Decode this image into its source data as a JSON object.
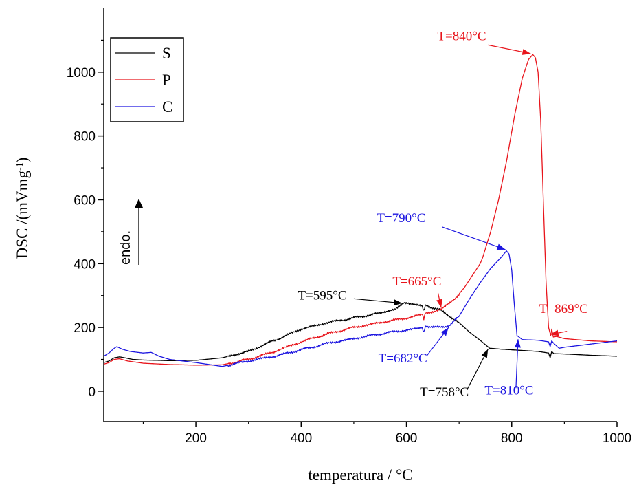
{
  "chart_data": {
    "type": "line",
    "xlabel": "temperatura / °C",
    "ylabel": "DSC /(mVmg",
    "ylabel_sup": "-1",
    "ylabel_end": ")",
    "xlim": [
      25,
      1000
    ],
    "ylim": [
      -95,
      1200
    ],
    "xticks": [
      200,
      400,
      600,
      800,
      1000
    ],
    "yticks": [
      0,
      200,
      400,
      600,
      800,
      1000
    ],
    "grid": false,
    "legend_position": "top-left",
    "endo_label": "endo.",
    "series": [
      {
        "name": "S",
        "color": "#000000",
        "points": [
          [
            25,
            90
          ],
          [
            35,
            95
          ],
          [
            45,
            105
          ],
          [
            55,
            108
          ],
          [
            65,
            105
          ],
          [
            80,
            100
          ],
          [
            100,
            98
          ],
          [
            150,
            96
          ],
          [
            200,
            97
          ],
          [
            250,
            105
          ],
          [
            300,
            125
          ],
          [
            350,
            160
          ],
          [
            400,
            195
          ],
          [
            450,
            215
          ],
          [
            500,
            230
          ],
          [
            550,
            245
          ],
          [
            580,
            260
          ],
          [
            595,
            275
          ],
          [
            620,
            270
          ],
          [
            630,
            265
          ],
          [
            633,
            250
          ],
          [
            636,
            268
          ],
          [
            650,
            262
          ],
          [
            670,
            250
          ],
          [
            700,
            215
          ],
          [
            720,
            185
          ],
          [
            740,
            160
          ],
          [
            758,
            135
          ],
          [
            780,
            132
          ],
          [
            800,
            130
          ],
          [
            820,
            128
          ],
          [
            850,
            125
          ],
          [
            870,
            120
          ],
          [
            873,
            105
          ],
          [
            876,
            125
          ],
          [
            880,
            118
          ],
          [
            900,
            117
          ],
          [
            950,
            113
          ],
          [
            1000,
            110
          ]
        ]
      },
      {
        "name": "P",
        "color": "#e8141b",
        "points": [
          [
            25,
            85
          ],
          [
            35,
            90
          ],
          [
            45,
            100
          ],
          [
            55,
            102
          ],
          [
            70,
            95
          ],
          [
            100,
            88
          ],
          [
            150,
            84
          ],
          [
            200,
            82
          ],
          [
            250,
            83
          ],
          [
            300,
            100
          ],
          [
            350,
            125
          ],
          [
            400,
            155
          ],
          [
            450,
            180
          ],
          [
            500,
            200
          ],
          [
            550,
            215
          ],
          [
            600,
            230
          ],
          [
            630,
            240
          ],
          [
            633,
            225
          ],
          [
            636,
            245
          ],
          [
            665,
            255
          ],
          [
            690,
            285
          ],
          [
            710,
            325
          ],
          [
            730,
            375
          ],
          [
            740,
            400
          ],
          [
            745,
            420
          ],
          [
            760,
            500
          ],
          [
            775,
            600
          ],
          [
            790,
            720
          ],
          [
            805,
            860
          ],
          [
            820,
            980
          ],
          [
            832,
            1040
          ],
          [
            840,
            1055
          ],
          [
            845,
            1045
          ],
          [
            850,
            1000
          ],
          [
            855,
            850
          ],
          [
            860,
            600
          ],
          [
            865,
            350
          ],
          [
            870,
            200
          ],
          [
            874,
            175
          ],
          [
            876,
            195
          ],
          [
            879,
            170
          ],
          [
            885,
            172
          ],
          [
            900,
            165
          ],
          [
            950,
            158
          ],
          [
            1000,
            155
          ]
        ]
      },
      {
        "name": "C",
        "color": "#1c15e0",
        "points": [
          [
            25,
            110
          ],
          [
            35,
            120
          ],
          [
            45,
            135
          ],
          [
            50,
            140
          ],
          [
            60,
            132
          ],
          [
            75,
            125
          ],
          [
            100,
            120
          ],
          [
            115,
            122
          ],
          [
            130,
            110
          ],
          [
            150,
            100
          ],
          [
            200,
            90
          ],
          [
            250,
            78
          ],
          [
            300,
            95
          ],
          [
            350,
            110
          ],
          [
            400,
            130
          ],
          [
            450,
            150
          ],
          [
            500,
            165
          ],
          [
            550,
            180
          ],
          [
            600,
            192
          ],
          [
            630,
            198
          ],
          [
            633,
            185
          ],
          [
            636,
            205
          ],
          [
            650,
            200
          ],
          [
            682,
            205
          ],
          [
            700,
            235
          ],
          [
            720,
            290
          ],
          [
            740,
            340
          ],
          [
            760,
            385
          ],
          [
            780,
            420
          ],
          [
            790,
            440
          ],
          [
            795,
            430
          ],
          [
            800,
            380
          ],
          [
            805,
            270
          ],
          [
            810,
            175
          ],
          [
            820,
            162
          ],
          [
            850,
            160
          ],
          [
            870,
            155
          ],
          [
            873,
            140
          ],
          [
            876,
            158
          ],
          [
            880,
            150
          ],
          [
            890,
            135
          ],
          [
            900,
            138
          ],
          [
            950,
            148
          ],
          [
            1000,
            158
          ]
        ]
      }
    ],
    "annotations": [
      {
        "text": "T=840°C",
        "color": "#e8141b",
        "tx": 705,
        "ty": 1100,
        "anchor": "middle",
        "ax1": 755,
        "ay1": 1085,
        "ax2": 836,
        "ay2": 1058
      },
      {
        "text": "T=790°C",
        "color": "#1c15e0",
        "tx": 590,
        "ty": 530,
        "anchor": "middle",
        "ax1": 668,
        "ay1": 515,
        "ax2": 788,
        "ay2": 444
      },
      {
        "text": "T=665°C",
        "color": "#e8141b",
        "tx": 620,
        "ty": 332,
        "anchor": "middle",
        "ax1": 660,
        "ay1": 308,
        "ax2": 666,
        "ay2": 262
      },
      {
        "text": "T=595°C",
        "color": "#000000",
        "tx": 440,
        "ty": 288,
        "anchor": "middle",
        "ax1": 500,
        "ay1": 290,
        "ax2": 592,
        "ay2": 276
      },
      {
        "text": "T=869°C",
        "color": "#e8141b",
        "tx": 945,
        "ty": 245,
        "anchor": "end",
        "ax1": 905,
        "ay1": 188,
        "ax2": 873,
        "ay2": 178
      },
      {
        "text": "T=682°C",
        "color": "#1c15e0",
        "tx": 593,
        "ty": 90,
        "anchor": "middle",
        "ax1": 638,
        "ay1": 110,
        "ax2": 680,
        "ay2": 200
      },
      {
        "text": "T=810°C",
        "color": "#1c15e0",
        "tx": 795,
        "ty": -10,
        "anchor": "middle",
        "ax1": 808,
        "ay1": 10,
        "ax2": 812,
        "ay2": 163
      },
      {
        "text": "T=758°C",
        "color": "#000000",
        "tx": 672,
        "ty": -15,
        "anchor": "middle",
        "ax1": 715,
        "ay1": 5,
        "ax2": 755,
        "ay2": 132
      }
    ]
  }
}
